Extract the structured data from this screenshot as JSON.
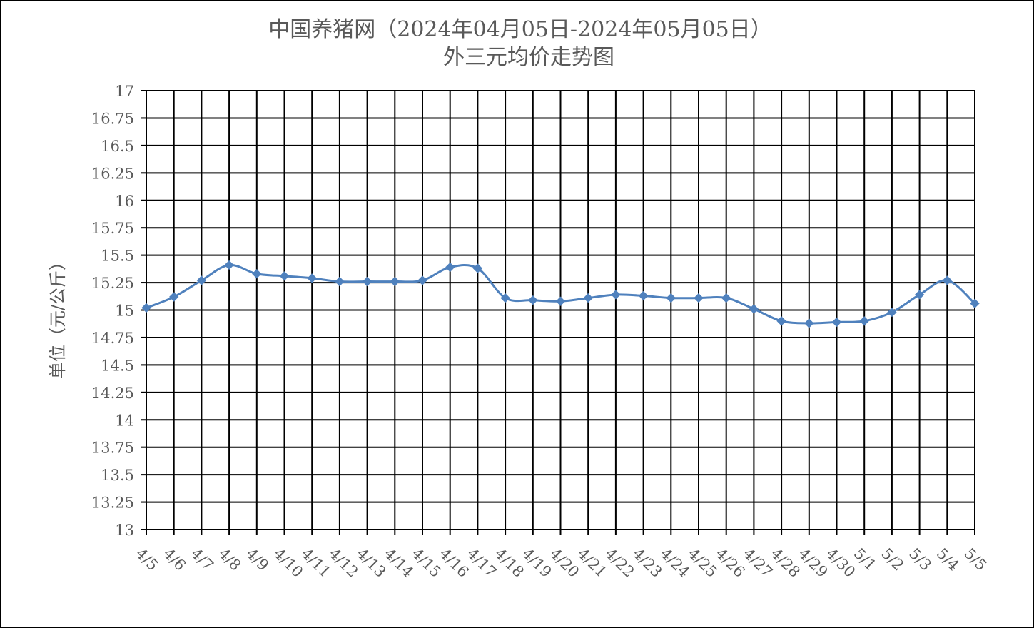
{
  "chart_data": {
    "type": "line",
    "title": "中国养猪网（2024年04月05日-2024年05月05日）",
    "subtitle": "外三元均价走势图",
    "xlabel": "",
    "ylabel": "单位（元/公斤）",
    "ylim": [
      13,
      17
    ],
    "yticks": [
      "13",
      "13.25",
      "13.5",
      "13.75",
      "14",
      "14.25",
      "14.5",
      "14.75",
      "15",
      "15.25",
      "15.5",
      "15.75",
      "16",
      "16.25",
      "16.5",
      "16.75",
      "17"
    ],
    "grid": true,
    "legend": "none",
    "categories": [
      "4/5",
      "4/6",
      "4/7",
      "4/8",
      "4/9",
      "4/10",
      "4/11",
      "4/12",
      "4/13",
      "4/14",
      "4/15",
      "4/16",
      "4/17",
      "4/18",
      "4/19",
      "4/20",
      "4/21",
      "4/22",
      "4/23",
      "4/24",
      "4/25",
      "4/26",
      "4/27",
      "4/28",
      "4/29",
      "4/30",
      "5/1",
      "5/2",
      "5/3",
      "5/4",
      "5/5"
    ],
    "series": [
      {
        "color": "#4f81bd",
        "marker": "diamond",
        "smooth": true,
        "values": [
          15.02,
          15.12,
          15.27,
          15.41,
          15.33,
          15.31,
          15.29,
          15.26,
          15.26,
          15.26,
          15.27,
          15.39,
          15.38,
          15.11,
          15.09,
          15.08,
          15.11,
          15.14,
          15.13,
          15.11,
          15.11,
          15.11,
          15.01,
          14.9,
          14.88,
          14.89,
          14.9,
          14.98,
          15.14,
          15.27,
          15.06
        ]
      }
    ]
  }
}
